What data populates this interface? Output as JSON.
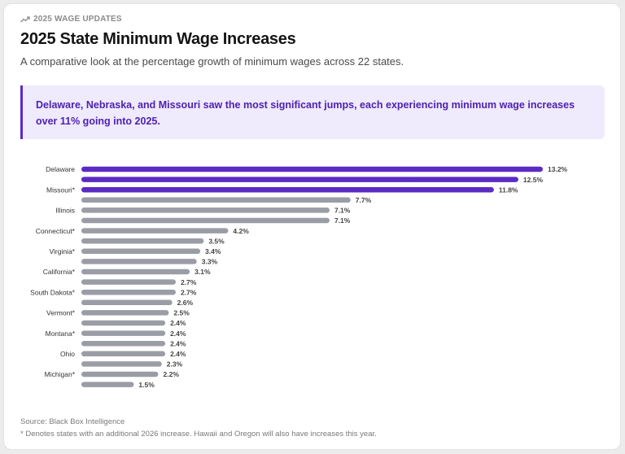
{
  "header": {
    "eyebrow": "2025 WAGE UPDATES",
    "eyebrow_icon": "trend-up-icon",
    "title": "2025 State Minimum Wage Increases",
    "subtitle": "A comparative look at the percentage growth of minimum wages across 22 states."
  },
  "callout": {
    "text": "Delaware, Nebraska, and Missouri saw the most significant jumps, each experiencing minimum wage increases over 11% going into 2025."
  },
  "footer": {
    "source": "Source: Black Box Intelligence",
    "note": "* Denotes states with an additional 2026 increase. Hawaii and Oregon will also have increases this year."
  },
  "colors": {
    "highlight": "#5b2bc4",
    "default": "#9a9da6",
    "accent_bg": "#efeafc"
  },
  "chart_data": {
    "type": "bar",
    "orientation": "horizontal",
    "xlim": [
      0,
      13.2
    ],
    "categories": [
      "Delaware",
      "",
      "Missouri*",
      "",
      "Illinois",
      "",
      "Connecticut*",
      "",
      "Virginia*",
      "",
      "California*",
      "",
      "South Dakota*",
      "",
      "Vermont*",
      "",
      "Montana*",
      "",
      "Ohio",
      "",
      "Michigan*",
      ""
    ],
    "values": [
      13.2,
      12.5,
      11.8,
      7.7,
      7.1,
      7.1,
      4.2,
      3.5,
      3.4,
      3.3,
      3.1,
      2.7,
      2.7,
      2.6,
      2.5,
      2.4,
      2.4,
      2.4,
      2.4,
      2.3,
      2.2,
      1.5
    ],
    "value_labels": [
      "13.2%",
      "12.5%",
      "11.8%",
      "7.7%",
      "7.1%",
      "7.1%",
      "4.2%",
      "3.5%",
      "3.4%",
      "3.3%",
      "3.1%",
      "2.7%",
      "2.7%",
      "2.6%",
      "2.5%",
      "2.4%",
      "2.4%",
      "2.4%",
      "2.4%",
      "2.3%",
      "2.2%",
      "1.5%"
    ],
    "highlighted": [
      true,
      true,
      true,
      false,
      false,
      false,
      false,
      false,
      false,
      false,
      false,
      false,
      false,
      false,
      false,
      false,
      false,
      false,
      false,
      false,
      false,
      false
    ]
  }
}
